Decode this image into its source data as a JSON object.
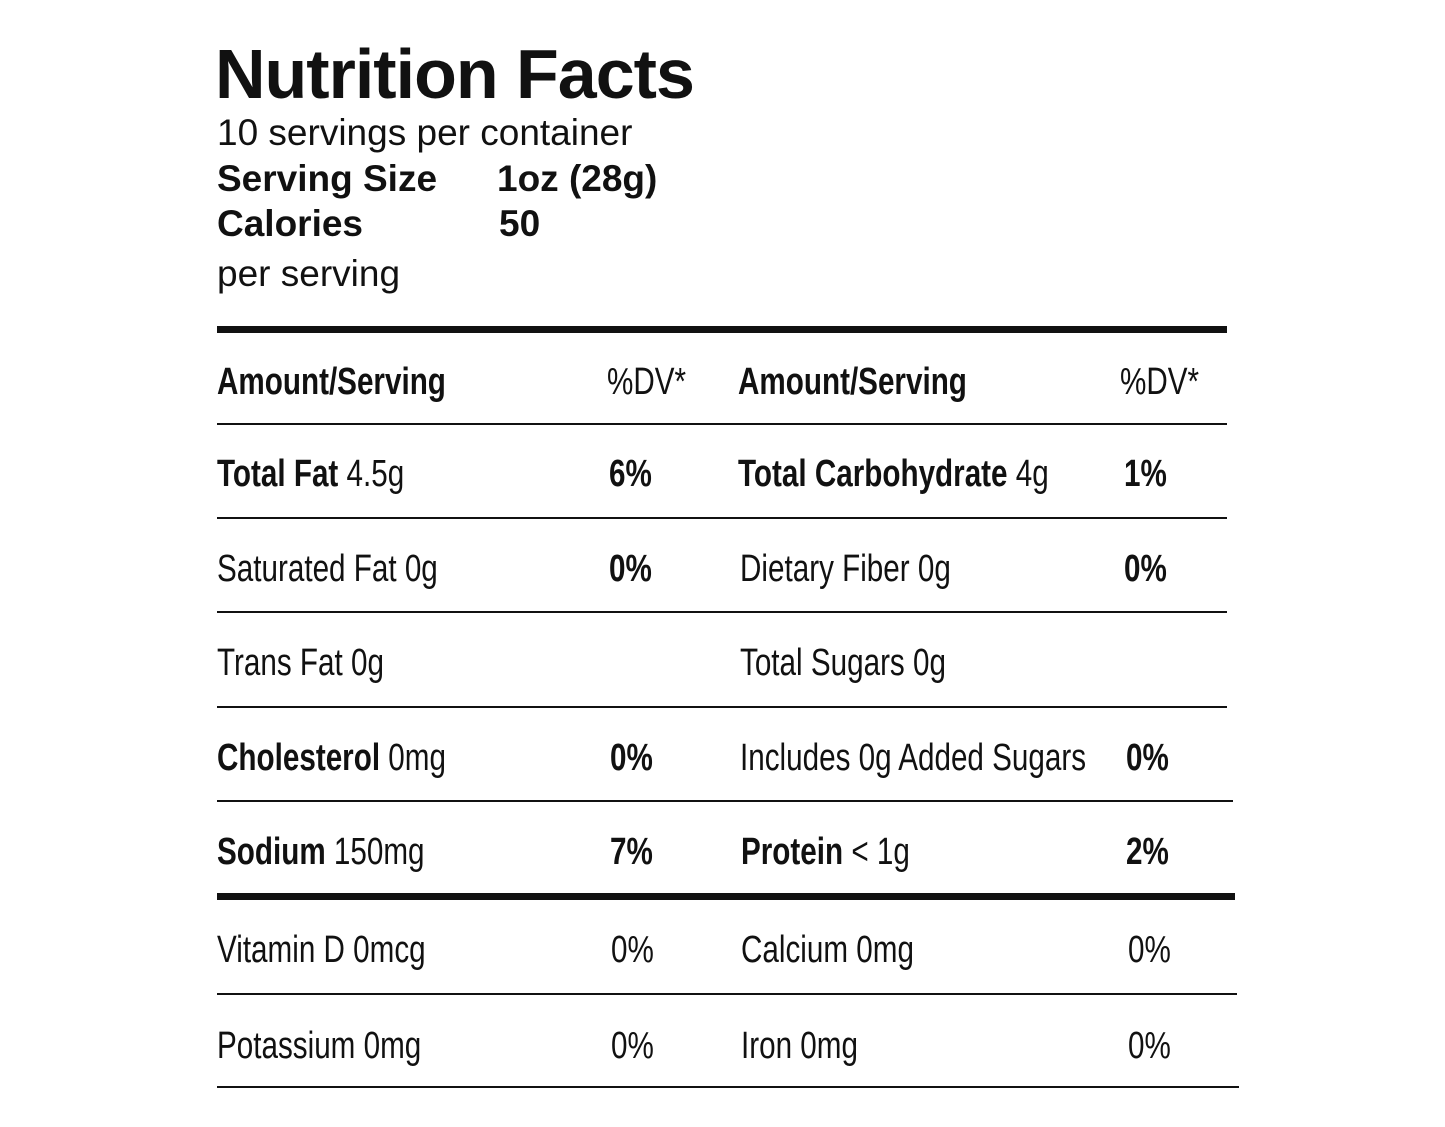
{
  "title": "Nutrition Facts",
  "servings_per_container": "10 servings per container",
  "serving_size": {
    "label": "Serving Size",
    "value": "1oz (28g)"
  },
  "calories": {
    "label": "Calories",
    "value": "50",
    "note": "per serving"
  },
  "header": {
    "left_amount": "Amount/Serving",
    "left_dv": "%DV*",
    "right_amount": "Amount/Serving",
    "right_dv": "%DV*"
  },
  "rows": [
    {
      "left_name": "Total Fat",
      "left_amount": "4.5g",
      "left_dv": "6%",
      "right_name": "Total Carbohydrate",
      "right_amount": "4g",
      "right_dv": "1%"
    },
    {
      "left_name": "",
      "left_amount": "Saturated Fat 0g",
      "left_dv": "0%",
      "right_name": "",
      "right_amount": "Dietary Fiber 0g",
      "right_dv": "0%"
    },
    {
      "left_name": "",
      "left_amount": "Trans Fat 0g",
      "left_dv": "",
      "right_name": "",
      "right_amount": "Total Sugars 0g",
      "right_dv": ""
    },
    {
      "left_name": "Cholesterol",
      "left_amount": "0mg",
      "left_dv": "0%",
      "right_name": "",
      "right_amount": "Includes 0g Added Sugars",
      "right_dv": "0%"
    },
    {
      "left_name": "Sodium",
      "left_amount": "150mg",
      "left_dv": "7%",
      "right_name": "Protein",
      "right_amount": "< 1g",
      "right_dv": "2%"
    }
  ],
  "vitamins": [
    {
      "left_label": "Vitamin D 0mcg",
      "left_dv": "0%",
      "right_label": "Calcium 0mg",
      "right_dv": "0%"
    },
    {
      "left_label": "Potassium 0mg",
      "left_dv": "0%",
      "right_label": "Iron 0mg",
      "right_dv": "0%"
    }
  ]
}
